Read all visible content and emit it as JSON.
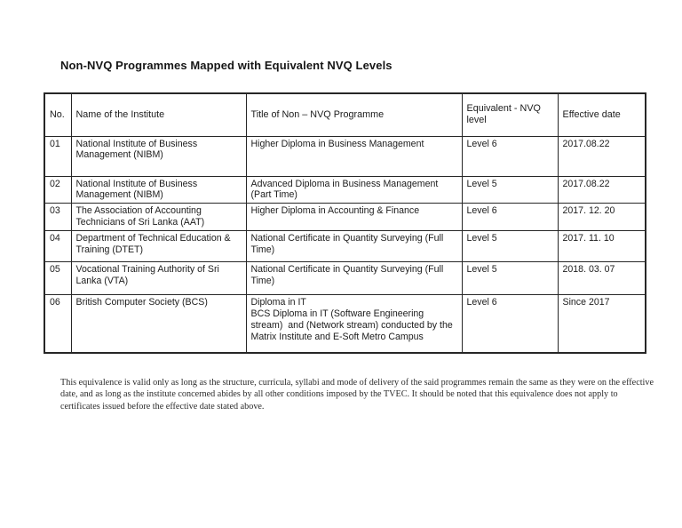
{
  "page": {
    "title": "Non-NVQ Programmes Mapped with Equivalent NVQ Levels"
  },
  "table": {
    "headers": [
      "No.",
      "Name of the Institute",
      "Title of Non – NVQ Programme",
      "Equivalent - NVQ level",
      "Effective date"
    ],
    "rows": [
      {
        "no": "01",
        "institute": "National Institute of Business\nManagement (NIBM)",
        "programme": "Higher Diploma in Business Management",
        "level": "Level 6",
        "date": "2017.08.22"
      },
      {
        "no": "02",
        "institute": "National Institute of Business\nManagement (NIBM)",
        "programme": "Advanced Diploma in Business Management\n(Part Time)",
        "level": "Level 5",
        "date": "2017.08.22"
      },
      {
        "no": "03",
        "institute": "The Association of Accounting\nTechnicians of Sri Lanka (AAT)",
        "programme": "Higher Diploma in Accounting & Finance",
        "level": "Level 6",
        "date": "2017. 12. 20"
      },
      {
        "no": "04",
        "institute": "Department of Technical Education &\nTraining (DTET)",
        "programme": "National Certificate in Quantity Surveying (Full\nTime)",
        "level": "Level 5",
        "date": "2017. 11. 10"
      },
      {
        "no": "05",
        "institute": "Vocational Training Authority of Sri\nLanka (VTA)",
        "programme": "National Certificate in Quantity Surveying (Full\nTime)",
        "level": "Level 5",
        "date": "2018. 03. 07"
      },
      {
        "no": "06",
        "institute": "British Computer Society (BCS)",
        "programme": "Diploma in IT\nBCS Diploma in IT (Software Engineering\nstream)  and (Network stream) conducted by the\nMatrix Institute and E-Soft Metro Campus",
        "level": "Level 6",
        "date": "Since 2017"
      }
    ]
  },
  "footer": {
    "note": "This equivalence is valid only as long as the structure, curricula, syllabi and mode of delivery of the said programmes remain the same as they were on the effective date, and as long as the institute concerned abides by all other conditions imposed by the TVEC. It should be noted that this equivalence does not apply to certificates issued before the effective date stated above."
  }
}
